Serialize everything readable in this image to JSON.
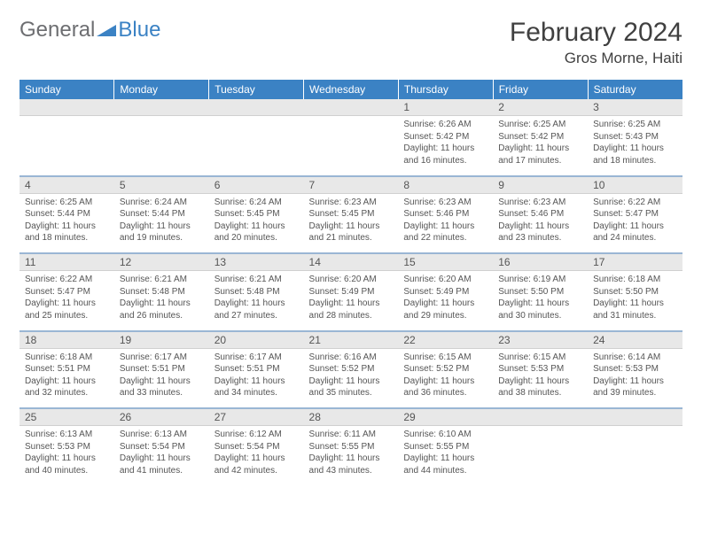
{
  "logo": {
    "part1": "General",
    "part2": "Blue"
  },
  "title": "February 2024",
  "location": "Gros Morne, Haiti",
  "colors": {
    "header_bg": "#3b82c4",
    "header_text": "#ffffff",
    "daynum_bg": "#e8e8e8",
    "row_divider": "#9ab6d4",
    "text": "#555555",
    "logo_gray": "#6d6e71",
    "logo_blue": "#3b82c4"
  },
  "weekdays": [
    "Sunday",
    "Monday",
    "Tuesday",
    "Wednesday",
    "Thursday",
    "Friday",
    "Saturday"
  ],
  "weeks": [
    [
      {
        "n": "",
        "c": ""
      },
      {
        "n": "",
        "c": ""
      },
      {
        "n": "",
        "c": ""
      },
      {
        "n": "",
        "c": ""
      },
      {
        "n": "1",
        "c": "Sunrise: 6:26 AM\nSunset: 5:42 PM\nDaylight: 11 hours and 16 minutes."
      },
      {
        "n": "2",
        "c": "Sunrise: 6:25 AM\nSunset: 5:42 PM\nDaylight: 11 hours and 17 minutes."
      },
      {
        "n": "3",
        "c": "Sunrise: 6:25 AM\nSunset: 5:43 PM\nDaylight: 11 hours and 18 minutes."
      }
    ],
    [
      {
        "n": "4",
        "c": "Sunrise: 6:25 AM\nSunset: 5:44 PM\nDaylight: 11 hours and 18 minutes."
      },
      {
        "n": "5",
        "c": "Sunrise: 6:24 AM\nSunset: 5:44 PM\nDaylight: 11 hours and 19 minutes."
      },
      {
        "n": "6",
        "c": "Sunrise: 6:24 AM\nSunset: 5:45 PM\nDaylight: 11 hours and 20 minutes."
      },
      {
        "n": "7",
        "c": "Sunrise: 6:23 AM\nSunset: 5:45 PM\nDaylight: 11 hours and 21 minutes."
      },
      {
        "n": "8",
        "c": "Sunrise: 6:23 AM\nSunset: 5:46 PM\nDaylight: 11 hours and 22 minutes."
      },
      {
        "n": "9",
        "c": "Sunrise: 6:23 AM\nSunset: 5:46 PM\nDaylight: 11 hours and 23 minutes."
      },
      {
        "n": "10",
        "c": "Sunrise: 6:22 AM\nSunset: 5:47 PM\nDaylight: 11 hours and 24 minutes."
      }
    ],
    [
      {
        "n": "11",
        "c": "Sunrise: 6:22 AM\nSunset: 5:47 PM\nDaylight: 11 hours and 25 minutes."
      },
      {
        "n": "12",
        "c": "Sunrise: 6:21 AM\nSunset: 5:48 PM\nDaylight: 11 hours and 26 minutes."
      },
      {
        "n": "13",
        "c": "Sunrise: 6:21 AM\nSunset: 5:48 PM\nDaylight: 11 hours and 27 minutes."
      },
      {
        "n": "14",
        "c": "Sunrise: 6:20 AM\nSunset: 5:49 PM\nDaylight: 11 hours and 28 minutes."
      },
      {
        "n": "15",
        "c": "Sunrise: 6:20 AM\nSunset: 5:49 PM\nDaylight: 11 hours and 29 minutes."
      },
      {
        "n": "16",
        "c": "Sunrise: 6:19 AM\nSunset: 5:50 PM\nDaylight: 11 hours and 30 minutes."
      },
      {
        "n": "17",
        "c": "Sunrise: 6:18 AM\nSunset: 5:50 PM\nDaylight: 11 hours and 31 minutes."
      }
    ],
    [
      {
        "n": "18",
        "c": "Sunrise: 6:18 AM\nSunset: 5:51 PM\nDaylight: 11 hours and 32 minutes."
      },
      {
        "n": "19",
        "c": "Sunrise: 6:17 AM\nSunset: 5:51 PM\nDaylight: 11 hours and 33 minutes."
      },
      {
        "n": "20",
        "c": "Sunrise: 6:17 AM\nSunset: 5:51 PM\nDaylight: 11 hours and 34 minutes."
      },
      {
        "n": "21",
        "c": "Sunrise: 6:16 AM\nSunset: 5:52 PM\nDaylight: 11 hours and 35 minutes."
      },
      {
        "n": "22",
        "c": "Sunrise: 6:15 AM\nSunset: 5:52 PM\nDaylight: 11 hours and 36 minutes."
      },
      {
        "n": "23",
        "c": "Sunrise: 6:15 AM\nSunset: 5:53 PM\nDaylight: 11 hours and 38 minutes."
      },
      {
        "n": "24",
        "c": "Sunrise: 6:14 AM\nSunset: 5:53 PM\nDaylight: 11 hours and 39 minutes."
      }
    ],
    [
      {
        "n": "25",
        "c": "Sunrise: 6:13 AM\nSunset: 5:53 PM\nDaylight: 11 hours and 40 minutes."
      },
      {
        "n": "26",
        "c": "Sunrise: 6:13 AM\nSunset: 5:54 PM\nDaylight: 11 hours and 41 minutes."
      },
      {
        "n": "27",
        "c": "Sunrise: 6:12 AM\nSunset: 5:54 PM\nDaylight: 11 hours and 42 minutes."
      },
      {
        "n": "28",
        "c": "Sunrise: 6:11 AM\nSunset: 5:55 PM\nDaylight: 11 hours and 43 minutes."
      },
      {
        "n": "29",
        "c": "Sunrise: 6:10 AM\nSunset: 5:55 PM\nDaylight: 11 hours and 44 minutes."
      },
      {
        "n": "",
        "c": ""
      },
      {
        "n": "",
        "c": ""
      }
    ]
  ]
}
